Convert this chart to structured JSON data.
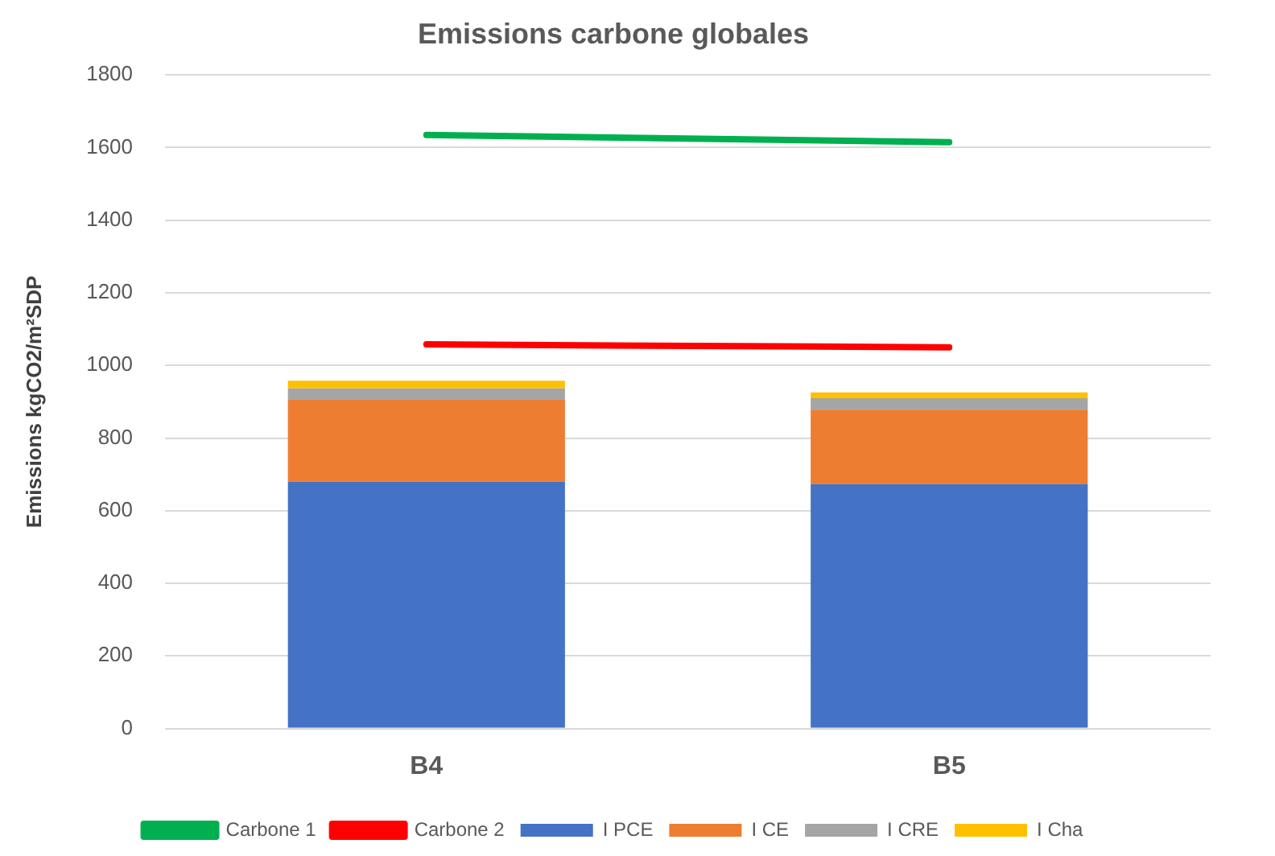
{
  "chart_data": {
    "type": "bar",
    "title": "Emissions carbone globales",
    "ylabel": "Emissions kgCO2/m²SDP",
    "categories": [
      "B4",
      "B5"
    ],
    "stacked": true,
    "series": [
      {
        "name": "I PCE",
        "color": "#4472c4",
        "values": [
          680,
          673
        ]
      },
      {
        "name": "I CE",
        "color": "#ed7d31",
        "values": [
          227,
          205
        ]
      },
      {
        "name": "I CRE",
        "color": "#a5a5a5",
        "values": [
          30,
          32
        ]
      },
      {
        "name": "I Cha",
        "color": "#ffc000",
        "values": [
          21,
          16
        ]
      },
      {
        "name": "Carbone 1",
        "type": "line",
        "color": "#00b050",
        "values": [
          1635,
          1615
        ]
      },
      {
        "name": "Carbone 2",
        "type": "line",
        "color": "#ff0000",
        "values": [
          1058,
          1050
        ]
      }
    ],
    "ylim": [
      0,
      1800
    ],
    "yticks": [
      0,
      200,
      400,
      600,
      800,
      1000,
      1200,
      1400,
      1600,
      1800
    ],
    "grid": "y",
    "legend": "bottom"
  }
}
